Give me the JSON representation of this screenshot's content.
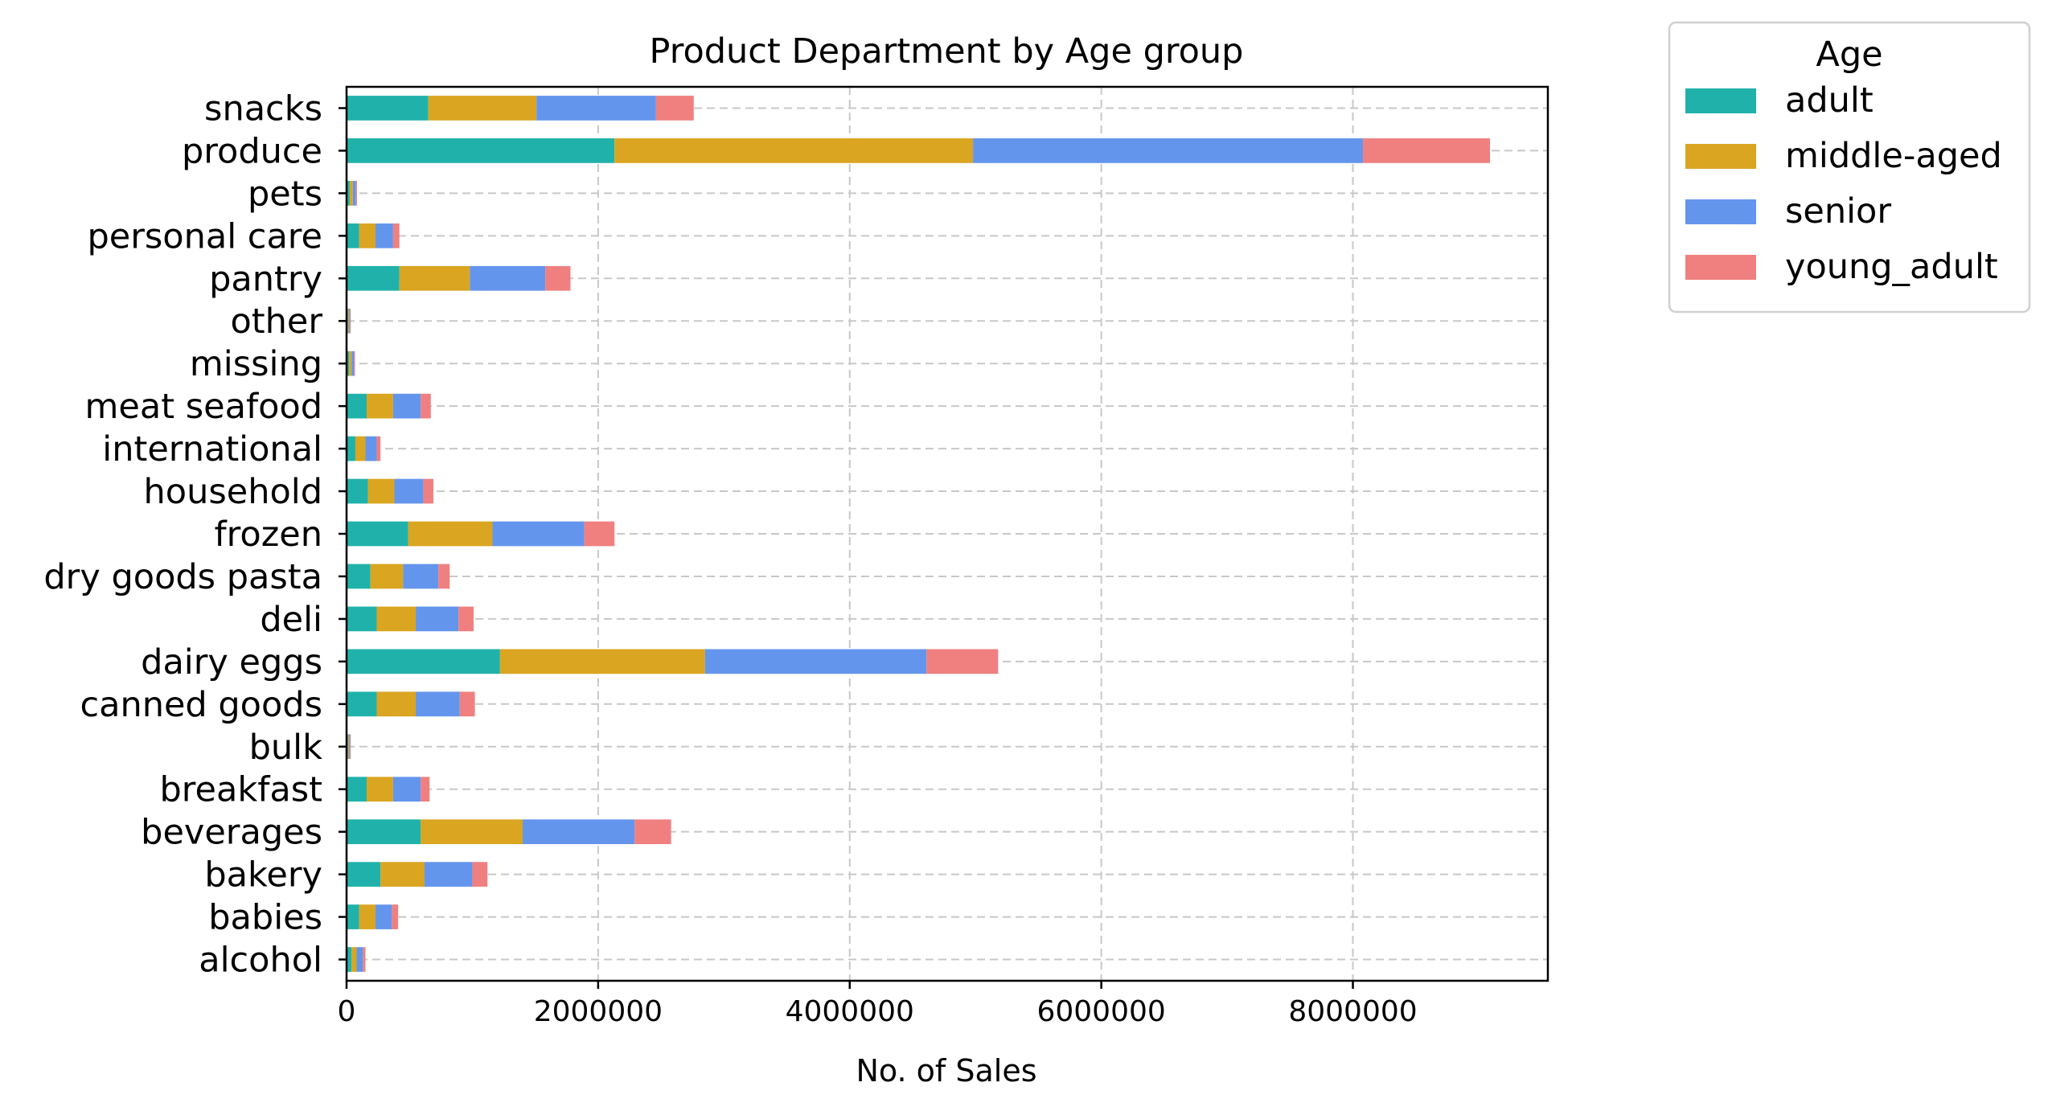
{
  "chart_data": {
    "type": "bar",
    "orientation": "horizontal",
    "stacked": true,
    "title": "Product Department by Age group",
    "xlabel": "No. of Sales",
    "ylabel": "",
    "xlim": [
      0,
      9550000
    ],
    "xticks": [
      0,
      2000000,
      4000000,
      6000000,
      8000000
    ],
    "xtick_labels": [
      "0",
      "2000000",
      "4000000",
      "6000000",
      "8000000"
    ],
    "grid": true,
    "legend_title": "Age",
    "legend_position": "outside-top-right",
    "categories": [
      "snacks",
      "produce",
      "pets",
      "personal care",
      "pantry",
      "other",
      "missing",
      "meat seafood",
      "international",
      "household",
      "frozen",
      "dry goods pasta",
      "deli",
      "dairy eggs",
      "canned goods",
      "bulk",
      "breakfast",
      "beverages",
      "bakery",
      "babies",
      "alcohol"
    ],
    "series": [
      {
        "name": "adult",
        "color": "#20b2aa",
        "values": [
          650000,
          2130000,
          25000,
          100000,
          420000,
          10000,
          20000,
          160000,
          70000,
          170000,
          490000,
          190000,
          240000,
          1220000,
          240000,
          10000,
          160000,
          590000,
          270000,
          100000,
          40000
        ]
      },
      {
        "name": "middle-aged",
        "color": "#daa520",
        "values": [
          860000,
          2850000,
          25000,
          130000,
          560000,
          10000,
          20000,
          210000,
          80000,
          210000,
          670000,
          260000,
          310000,
          1630000,
          310000,
          10000,
          210000,
          810000,
          350000,
          130000,
          40000
        ]
      },
      {
        "name": "senior",
        "color": "#6495ed",
        "values": [
          950000,
          3100000,
          25000,
          140000,
          600000,
          10000,
          20000,
          220000,
          90000,
          230000,
          730000,
          280000,
          340000,
          1760000,
          350000,
          10000,
          220000,
          890000,
          380000,
          130000,
          50000
        ]
      },
      {
        "name": "young_adult",
        "color": "#f08080",
        "values": [
          300000,
          1010000,
          8000,
          50000,
          200000,
          3000,
          7000,
          80000,
          30000,
          80000,
          240000,
          90000,
          120000,
          570000,
          120000,
          3000,
          70000,
          290000,
          120000,
          50000,
          20000
        ]
      }
    ]
  }
}
